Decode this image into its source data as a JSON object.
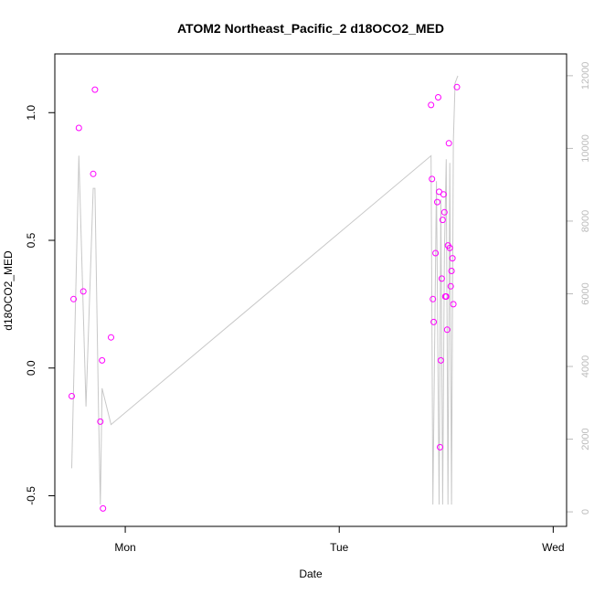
{
  "chart_data": {
    "type": "scatter",
    "title": "ATOM2 Northeast_Pacific_2 d18OCO2_MED",
    "xlabel": "Date",
    "ylabel": "d18OCO2_MED",
    "x_ticks": [
      "Mon",
      "Tue",
      "Wed"
    ],
    "x_tick_hours": [
      24,
      48,
      72
    ],
    "x_range_hours": [
      16.1,
      73.5
    ],
    "y_ticks": [
      "-0.5",
      "0.0",
      "0.5",
      "1.0"
    ],
    "y_tick_values": [
      -0.5,
      0.0,
      0.5,
      1.0
    ],
    "ylim": [
      -0.62,
      1.23
    ],
    "y2_ticks": [
      "0",
      "2000",
      "4000",
      "6000",
      "8000",
      "10000",
      "12000"
    ],
    "y2_tick_values": [
      0,
      2000,
      4000,
      6000,
      8000,
      10000,
      12000
    ],
    "y2lim": [
      -400,
      12600
    ],
    "point_color": "#ff00ff",
    "line_color": "#c8c8c8",
    "series": [
      {
        "name": "",
        "kind": "points",
        "axis": "left",
        "x_hours": [
          18.0,
          18.2,
          18.8,
          19.3,
          20.4,
          20.6,
          21.2,
          21.4,
          21.5,
          22.4,
          58.3,
          58.4,
          58.5,
          58.6,
          58.8,
          59.0,
          59.1,
          59.2,
          59.3,
          59.4,
          59.5,
          59.6,
          59.7,
          59.8,
          59.9,
          60.0,
          60.1,
          60.2,
          60.3,
          60.4,
          60.5,
          60.6,
          60.7,
          60.8,
          61.2
        ],
        "y": [
          -0.11,
          0.27,
          0.94,
          0.3,
          0.76,
          1.09,
          -0.21,
          0.03,
          -0.55,
          0.12,
          1.03,
          0.74,
          0.27,
          0.18,
          0.45,
          0.65,
          1.06,
          0.69,
          -0.31,
          0.03,
          0.35,
          0.58,
          0.68,
          0.61,
          0.28,
          0.28,
          0.15,
          0.48,
          0.88,
          0.47,
          0.32,
          0.38,
          0.43,
          0.25,
          1.1
        ]
      },
      {
        "name": "",
        "kind": "line",
        "axis": "right",
        "x_hours": [
          18.0,
          18.8,
          19.6,
          20.4,
          20.6,
          21.0,
          21.2,
          21.4,
          22.4,
          58.3,
          58.5,
          58.9,
          59.2,
          59.4,
          59.6,
          59.8,
          60.0,
          60.2,
          60.4,
          60.6,
          60.8,
          61.0,
          61.3
        ],
        "y": [
          1200,
          9800,
          2900,
          8900,
          8900,
          2800,
          200,
          3400,
          2400,
          9800,
          200,
          9100,
          200,
          8600,
          200,
          7100,
          9700,
          200,
          9600,
          200,
          10200,
          11800,
          12000
        ]
      }
    ]
  }
}
